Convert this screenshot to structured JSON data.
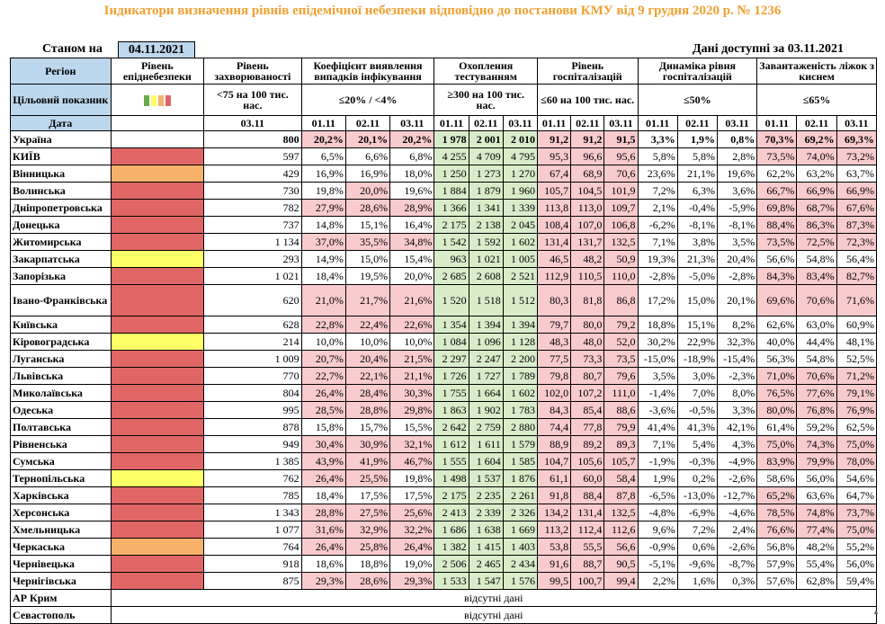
{
  "title": "Індикатори визначення рівнів епідемічної небезпеки відповідно до постанови КМУ від 9 грудня 2020 р. № 1236",
  "as_of_label": "Станом на",
  "as_of_date": "04.11.2021",
  "data_available": "Дані доступні за  03.11.2021",
  "headers": {
    "region": "Регіон",
    "level": "Рівень епіднебезпеки",
    "incidence": "Рівень захворюваності",
    "detection": "Коефіцієнт виявлення випадків інфікування",
    "testing": "Охоплення тестуванням",
    "hosp": "Рівень госпіталізацій",
    "hosp_dyn": "Динаміка рівня госпіталізацій",
    "oxygen": "Завантаженість ліжок з киснем"
  },
  "targets": {
    "label": "Цільовий показник",
    "incidence": "<75 на 100 тис. нас.",
    "detection": "≤20% / <4%",
    "testing": "≥300 на 100 тис. нас.",
    "hosp": "≤60 на 100 тис. нас.",
    "hosp_dyn": "≤50%",
    "oxygen": "≤65%"
  },
  "legend_colors": [
    "#6aa84f",
    "#ffff66",
    "#f6b26b",
    "#e06666"
  ],
  "date_label": "Дата",
  "dates": {
    "incidence": "03.11",
    "d1": "01.11",
    "d2": "02.11",
    "d3": "03.11"
  },
  "colors": {
    "red": "#e06666",
    "orange": "#f6b26b",
    "yellow": "#ffff66",
    "pink": "#f8cbcd",
    "green": "#d8ecc9",
    "blue": "#bdd7ee",
    "title": "#f0a030"
  },
  "rows": [
    {
      "region": "Україна",
      "level": "none",
      "inc": "800",
      "det": [
        "20,2%",
        "20,1%",
        "20,2%"
      ],
      "det_hl": [
        1,
        1,
        1
      ],
      "test": [
        "1 978",
        "2 001",
        "2 010"
      ],
      "hosp": [
        "91,2",
        "91,2",
        "91,5"
      ],
      "dyn": [
        "3,3%",
        "1,9%",
        "0,8%"
      ],
      "dyn_hl": [
        0,
        0,
        0
      ],
      "oxy": [
        "70,3%",
        "69,2%",
        "69,3%"
      ],
      "oxy_hl": [
        1,
        1,
        1
      ]
    },
    {
      "region": "КИЇВ",
      "level": "red",
      "inc": "597",
      "det": [
        "6,5%",
        "6,6%",
        "6,8%"
      ],
      "det_hl": [
        0,
        0,
        0
      ],
      "test": [
        "4 255",
        "4 709",
        "4 795"
      ],
      "hosp": [
        "95,3",
        "96,6",
        "95,6"
      ],
      "dyn": [
        "5,8%",
        "5,8%",
        "2,8%"
      ],
      "dyn_hl": [
        0,
        0,
        0
      ],
      "oxy": [
        "73,5%",
        "74,0%",
        "73,2%"
      ],
      "oxy_hl": [
        1,
        1,
        1
      ]
    },
    {
      "region": "Вінницька",
      "level": "orange",
      "inc": "429",
      "det": [
        "16,9%",
        "16,9%",
        "18,0%"
      ],
      "det_hl": [
        0,
        0,
        0
      ],
      "test": [
        "1 250",
        "1 273",
        "1 270"
      ],
      "hosp": [
        "67,4",
        "68,9",
        "70,6"
      ],
      "dyn": [
        "23,6%",
        "21,1%",
        "19,6%"
      ],
      "dyn_hl": [
        0,
        0,
        0
      ],
      "oxy": [
        "62,2%",
        "63,2%",
        "63,7%"
      ],
      "oxy_hl": [
        0,
        0,
        0
      ]
    },
    {
      "region": "Волинська",
      "level": "red",
      "inc": "730",
      "det": [
        "19,8%",
        "20,0%",
        "19,6%"
      ],
      "det_hl": [
        0,
        1,
        0
      ],
      "test": [
        "1 884",
        "1 879",
        "1 960"
      ],
      "hosp": [
        "105,7",
        "104,5",
        "101,9"
      ],
      "dyn": [
        "7,2%",
        "6,3%",
        "3,6%"
      ],
      "dyn_hl": [
        0,
        0,
        0
      ],
      "oxy": [
        "66,7%",
        "66,9%",
        "66,9%"
      ],
      "oxy_hl": [
        1,
        1,
        1
      ]
    },
    {
      "region": "Дніпропетровська",
      "level": "red",
      "inc": "782",
      "det": [
        "27,9%",
        "28,6%",
        "28,9%"
      ],
      "det_hl": [
        1,
        1,
        1
      ],
      "test": [
        "1 366",
        "1 341",
        "1 339"
      ],
      "hosp": [
        "113,8",
        "113,0",
        "109,7"
      ],
      "dyn": [
        "2,1%",
        "-0,4%",
        "-5,9%"
      ],
      "dyn_hl": [
        0,
        0,
        0
      ],
      "oxy": [
        "69,8%",
        "68,7%",
        "67,6%"
      ],
      "oxy_hl": [
        1,
        1,
        1
      ]
    },
    {
      "region": "Донецька",
      "level": "red",
      "inc": "737",
      "det": [
        "14,8%",
        "15,1%",
        "16,4%"
      ],
      "det_hl": [
        0,
        0,
        0
      ],
      "test": [
        "2 175",
        "2 138",
        "2 045"
      ],
      "hosp": [
        "108,4",
        "107,0",
        "106,8"
      ],
      "dyn": [
        "-6,2%",
        "-8,1%",
        "-8,1%"
      ],
      "dyn_hl": [
        0,
        0,
        0
      ],
      "oxy": [
        "88,4%",
        "86,3%",
        "87,3%"
      ],
      "oxy_hl": [
        1,
        1,
        1
      ]
    },
    {
      "region": "Житомирська",
      "level": "red",
      "inc": "1 134",
      "det": [
        "37,0%",
        "35,5%",
        "34,8%"
      ],
      "det_hl": [
        1,
        1,
        1
      ],
      "test": [
        "1 542",
        "1 592",
        "1 602"
      ],
      "hosp": [
        "131,4",
        "131,7",
        "132,5"
      ],
      "dyn": [
        "7,1%",
        "3,8%",
        "3,5%"
      ],
      "dyn_hl": [
        0,
        0,
        0
      ],
      "oxy": [
        "73,5%",
        "72,5%",
        "72,3%"
      ],
      "oxy_hl": [
        1,
        1,
        1
      ]
    },
    {
      "region": "Закарпатська",
      "level": "yellow",
      "inc": "293",
      "det": [
        "14,9%",
        "15,0%",
        "15,4%"
      ],
      "det_hl": [
        0,
        0,
        0
      ],
      "test": [
        "963",
        "1 021",
        "1 005"
      ],
      "hosp": [
        "46,5",
        "48,2",
        "50,9"
      ],
      "dyn": [
        "19,3%",
        "21,3%",
        "20,4%"
      ],
      "dyn_hl": [
        0,
        0,
        0
      ],
      "oxy": [
        "56,6%",
        "54,8%",
        "56,4%"
      ],
      "oxy_hl": [
        0,
        0,
        0
      ]
    },
    {
      "region": "Запорізька",
      "level": "red",
      "inc": "1 021",
      "det": [
        "18,4%",
        "19,5%",
        "20,0%"
      ],
      "det_hl": [
        0,
        0,
        0
      ],
      "test": [
        "2 685",
        "2 608",
        "2 521"
      ],
      "hosp": [
        "112,9",
        "110,5",
        "110,0"
      ],
      "dyn": [
        "-2,8%",
        "-5,0%",
        "-2,8%"
      ],
      "dyn_hl": [
        0,
        0,
        0
      ],
      "oxy": [
        "84,3%",
        "83,4%",
        "82,7%"
      ],
      "oxy_hl": [
        1,
        1,
        1
      ]
    },
    {
      "region": "Івано-Франківська",
      "level": "red",
      "inc": "620",
      "det": [
        "21,0%",
        "21,7%",
        "21,6%"
      ],
      "det_hl": [
        1,
        1,
        1
      ],
      "test": [
        "1 520",
        "1 518",
        "1 512"
      ],
      "hosp": [
        "80,3",
        "81,8",
        "86,8"
      ],
      "dyn": [
        "17,2%",
        "15,0%",
        "20,1%"
      ],
      "dyn_hl": [
        0,
        0,
        0
      ],
      "oxy": [
        "69,6%",
        "70,6%",
        "71,6%"
      ],
      "oxy_hl": [
        1,
        1,
        1
      ]
    },
    {
      "region": "Київська",
      "level": "red",
      "inc": "628",
      "det": [
        "22,8%",
        "22,4%",
        "22,6%"
      ],
      "det_hl": [
        1,
        1,
        1
      ],
      "test": [
        "1 354",
        "1 394",
        "1 394"
      ],
      "hosp": [
        "79,7",
        "80,0",
        "79,2"
      ],
      "dyn": [
        "18,8%",
        "15,1%",
        "8,2%"
      ],
      "dyn_hl": [
        0,
        0,
        0
      ],
      "oxy": [
        "62,6%",
        "63,0%",
        "60,9%"
      ],
      "oxy_hl": [
        0,
        0,
        0
      ]
    },
    {
      "region": "Кіровоградська",
      "level": "yellow",
      "inc": "214",
      "det": [
        "10,0%",
        "10,0%",
        "10,0%"
      ],
      "det_hl": [
        0,
        0,
        0
      ],
      "test": [
        "1 084",
        "1 096",
        "1 128"
      ],
      "hosp": [
        "48,3",
        "48,0",
        "52,0"
      ],
      "dyn": [
        "30,2%",
        "22,9%",
        "32,3%"
      ],
      "dyn_hl": [
        0,
        0,
        0
      ],
      "oxy": [
        "40,0%",
        "44,4%",
        "48,1%"
      ],
      "oxy_hl": [
        0,
        0,
        0
      ]
    },
    {
      "region": "Луганська",
      "level": "red",
      "inc": "1 009",
      "det": [
        "20,7%",
        "20,4%",
        "21,5%"
      ],
      "det_hl": [
        1,
        1,
        1
      ],
      "test": [
        "2 297",
        "2 247",
        "2 200"
      ],
      "hosp": [
        "77,5",
        "73,3",
        "73,5"
      ],
      "dyn": [
        "-15,0%",
        "-18,9%",
        "-15,4%"
      ],
      "dyn_hl": [
        0,
        0,
        0
      ],
      "oxy": [
        "56,3%",
        "54,8%",
        "52,5%"
      ],
      "oxy_hl": [
        0,
        0,
        0
      ]
    },
    {
      "region": "Львівська",
      "level": "red",
      "inc": "770",
      "det": [
        "22,7%",
        "22,1%",
        "21,1%"
      ],
      "det_hl": [
        1,
        1,
        1
      ],
      "test": [
        "1 726",
        "1 727",
        "1 789"
      ],
      "hosp": [
        "79,8",
        "80,7",
        "79,6"
      ],
      "dyn": [
        "3,5%",
        "3,0%",
        "-2,3%"
      ],
      "dyn_hl": [
        0,
        0,
        0
      ],
      "oxy": [
        "71,0%",
        "70,6%",
        "71,2%"
      ],
      "oxy_hl": [
        1,
        1,
        1
      ]
    },
    {
      "region": "Миколаївська",
      "level": "red",
      "inc": "804",
      "det": [
        "26,4%",
        "28,4%",
        "30,3%"
      ],
      "det_hl": [
        1,
        1,
        1
      ],
      "test": [
        "1 755",
        "1 664",
        "1 602"
      ],
      "hosp": [
        "102,0",
        "107,2",
        "111,0"
      ],
      "dyn": [
        "-1,4%",
        "7,0%",
        "8,0%"
      ],
      "dyn_hl": [
        0,
        0,
        0
      ],
      "oxy": [
        "76,5%",
        "77,6%",
        "79,1%"
      ],
      "oxy_hl": [
        1,
        1,
        1
      ]
    },
    {
      "region": "Одеська",
      "level": "red",
      "inc": "995",
      "det": [
        "28,5%",
        "28,8%",
        "29,8%"
      ],
      "det_hl": [
        1,
        1,
        1
      ],
      "test": [
        "1 863",
        "1 902",
        "1 783"
      ],
      "hosp": [
        "84,3",
        "85,4",
        "88,6"
      ],
      "dyn": [
        "-3,6%",
        "-0,5%",
        "3,3%"
      ],
      "dyn_hl": [
        0,
        0,
        0
      ],
      "oxy": [
        "80,0%",
        "76,8%",
        "76,9%"
      ],
      "oxy_hl": [
        1,
        1,
        1
      ]
    },
    {
      "region": "Полтавська",
      "level": "red",
      "inc": "878",
      "det": [
        "15,8%",
        "15,7%",
        "15,5%"
      ],
      "det_hl": [
        0,
        0,
        0
      ],
      "test": [
        "2 642",
        "2 759",
        "2 880"
      ],
      "hosp": [
        "74,4",
        "77,8",
        "79,9"
      ],
      "dyn": [
        "41,4%",
        "41,3%",
        "42,1%"
      ],
      "dyn_hl": [
        0,
        0,
        0
      ],
      "oxy": [
        "61,4%",
        "59,2%",
        "62,5%"
      ],
      "oxy_hl": [
        0,
        0,
        0
      ]
    },
    {
      "region": "Рівненська",
      "level": "red",
      "inc": "949",
      "det": [
        "30,4%",
        "30,9%",
        "32,1%"
      ],
      "det_hl": [
        1,
        1,
        1
      ],
      "test": [
        "1 612",
        "1 611",
        "1 579"
      ],
      "hosp": [
        "88,9",
        "89,2",
        "89,3"
      ],
      "dyn": [
        "7,1%",
        "5,4%",
        "4,3%"
      ],
      "dyn_hl": [
        0,
        0,
        0
      ],
      "oxy": [
        "75,0%",
        "74,3%",
        "75,0%"
      ],
      "oxy_hl": [
        1,
        1,
        1
      ]
    },
    {
      "region": "Сумська",
      "level": "red",
      "inc": "1 385",
      "det": [
        "43,9%",
        "41,9%",
        "46,7%"
      ],
      "det_hl": [
        1,
        1,
        1
      ],
      "test": [
        "1 555",
        "1 604",
        "1 585"
      ],
      "hosp": [
        "104,7",
        "105,6",
        "105,7"
      ],
      "dyn": [
        "-1,9%",
        "-0,3%",
        "-4,9%"
      ],
      "dyn_hl": [
        0,
        0,
        0
      ],
      "oxy": [
        "83,9%",
        "79,9%",
        "78,0%"
      ],
      "oxy_hl": [
        1,
        1,
        1
      ]
    },
    {
      "region": "Тернопільська",
      "level": "yellow",
      "inc": "762",
      "det": [
        "26,4%",
        "25,5%",
        "19,8%"
      ],
      "det_hl": [
        1,
        1,
        0
      ],
      "test": [
        "1 498",
        "1 537",
        "1 876"
      ],
      "hosp": [
        "61,1",
        "60,0",
        "58,4"
      ],
      "dyn": [
        "1,9%",
        "0,2%",
        "-2,6%"
      ],
      "dyn_hl": [
        0,
        0,
        0
      ],
      "oxy": [
        "58,6%",
        "56,0%",
        "54,6%"
      ],
      "oxy_hl": [
        0,
        0,
        0
      ]
    },
    {
      "region": "Харківська",
      "level": "red",
      "inc": "785",
      "det": [
        "18,4%",
        "17,5%",
        "17,5%"
      ],
      "det_hl": [
        0,
        0,
        0
      ],
      "test": [
        "2 175",
        "2 235",
        "2 261"
      ],
      "hosp": [
        "91,8",
        "88,4",
        "87,8"
      ],
      "dyn": [
        "-6,5%",
        "-13,0%",
        "-12,7%"
      ],
      "dyn_hl": [
        0,
        0,
        0
      ],
      "oxy": [
        "65,2%",
        "63,6%",
        "64,7%"
      ],
      "oxy_hl": [
        1,
        0,
        0
      ]
    },
    {
      "region": "Херсонська",
      "level": "red",
      "inc": "1 343",
      "det": [
        "28,8%",
        "27,5%",
        "25,6%"
      ],
      "det_hl": [
        1,
        1,
        1
      ],
      "test": [
        "2 413",
        "2 339",
        "2 326"
      ],
      "hosp": [
        "134,2",
        "131,4",
        "132,5"
      ],
      "dyn": [
        "-4,8%",
        "-6,9%",
        "-4,6%"
      ],
      "dyn_hl": [
        0,
        0,
        0
      ],
      "oxy": [
        "78,5%",
        "74,8%",
        "73,7%"
      ],
      "oxy_hl": [
        1,
        1,
        1
      ]
    },
    {
      "region": "Хмельницька",
      "level": "red",
      "inc": "1 077",
      "det": [
        "31,6%",
        "32,9%",
        "32,2%"
      ],
      "det_hl": [
        1,
        1,
        1
      ],
      "test": [
        "1 686",
        "1 638",
        "1 669"
      ],
      "hosp": [
        "113,2",
        "112,4",
        "112,6"
      ],
      "dyn": [
        "9,6%",
        "7,2%",
        "2,4%"
      ],
      "dyn_hl": [
        0,
        0,
        0
      ],
      "oxy": [
        "76,6%",
        "77,4%",
        "75,0%"
      ],
      "oxy_hl": [
        1,
        1,
        1
      ]
    },
    {
      "region": "Черкаська",
      "level": "orange",
      "inc": "764",
      "det": [
        "26,4%",
        "25,8%",
        "26,4%"
      ],
      "det_hl": [
        1,
        1,
        1
      ],
      "test": [
        "1 382",
        "1 415",
        "1 403"
      ],
      "hosp": [
        "53,8",
        "55,5",
        "56,6"
      ],
      "dyn": [
        "-0,9%",
        "0,6%",
        "-2,6%"
      ],
      "dyn_hl": [
        0,
        0,
        0
      ],
      "oxy": [
        "56,8%",
        "48,2%",
        "55,2%"
      ],
      "oxy_hl": [
        0,
        0,
        0
      ]
    },
    {
      "region": "Чернівецька",
      "level": "red",
      "inc": "918",
      "det": [
        "18,6%",
        "18,8%",
        "19,0%"
      ],
      "det_hl": [
        0,
        0,
        0
      ],
      "test": [
        "2 506",
        "2 465",
        "2 434"
      ],
      "hosp": [
        "91,6",
        "88,7",
        "90,5"
      ],
      "dyn": [
        "-5,1%",
        "-9,6%",
        "-8,7%"
      ],
      "dyn_hl": [
        0,
        0,
        0
      ],
      "oxy": [
        "57,9%",
        "55,4%",
        "56,0%"
      ],
      "oxy_hl": [
        0,
        0,
        0
      ]
    },
    {
      "region": "Чернігівська",
      "level": "red",
      "inc": "875",
      "det": [
        "29,3%",
        "28,6%",
        "29,3%"
      ],
      "det_hl": [
        1,
        1,
        1
      ],
      "test": [
        "1 533",
        "1 547",
        "1 576"
      ],
      "hosp": [
        "99,5",
        "100,7",
        "99,4"
      ],
      "dyn": [
        "2,2%",
        "1,6%",
        "0,3%"
      ],
      "dyn_hl": [
        0,
        0,
        0
      ],
      "oxy": [
        "57,6%",
        "62,8%",
        "59,4%"
      ],
      "oxy_hl": [
        0,
        0,
        0
      ]
    }
  ],
  "missing_rows": [
    {
      "region": "АР Крим",
      "text": "відсутні дані"
    },
    {
      "region": "Севастополь",
      "text": "відсутні дані"
    }
  ]
}
